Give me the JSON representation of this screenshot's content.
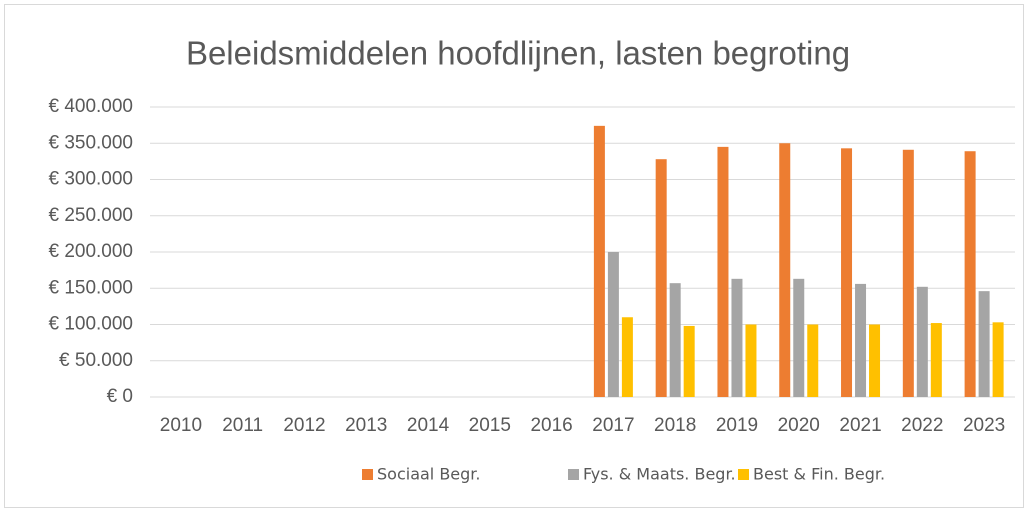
{
  "chart_data": {
    "type": "bar",
    "title": "Beleidsmiddelen hoofdlijnen, lasten begroting",
    "categories": [
      "2010",
      "2011",
      "2012",
      "2013",
      "2014",
      "2015",
      "2016",
      "2017",
      "2018",
      "2019",
      "2020",
      "2021",
      "2022",
      "2023"
    ],
    "series": [
      {
        "name": "Sociaal Begr.",
        "color": "#ed7d31",
        "values": [
          null,
          null,
          null,
          null,
          null,
          null,
          null,
          374000,
          328000,
          345000,
          350000,
          343000,
          341000,
          339000
        ]
      },
      {
        "name": "Fys. & Maats. Begr.",
        "color": "#a5a5a5",
        "values": [
          null,
          null,
          null,
          null,
          null,
          null,
          null,
          200000,
          157000,
          163000,
          163000,
          156000,
          152000,
          146000
        ]
      },
      {
        "name": "Best & Fin. Begr.",
        "color": "#ffc000",
        "values": [
          null,
          null,
          null,
          null,
          null,
          null,
          null,
          110000,
          98000,
          100000,
          100000,
          100000,
          102000,
          103000
        ]
      }
    ],
    "ylim": [
      0,
      400000
    ],
    "yticks": [
      {
        "value": 0,
        "label": "€ 0"
      },
      {
        "value": 50000,
        "label": "€ 50.000"
      },
      {
        "value": 100000,
        "label": "€ 100.000"
      },
      {
        "value": 150000,
        "label": "€ 150.000"
      },
      {
        "value": 200000,
        "label": "€ 200.000"
      },
      {
        "value": 250000,
        "label": "€ 250.000"
      },
      {
        "value": 300000,
        "label": "€ 300.000"
      },
      {
        "value": 350000,
        "label": "€ 350.000"
      },
      {
        "value": 400000,
        "label": "€ 400.000"
      }
    ],
    "grid": true,
    "legend": "bottom"
  }
}
